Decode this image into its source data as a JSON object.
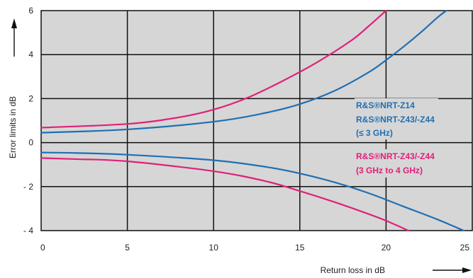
{
  "chart_data": {
    "type": "line",
    "xlabel": "Return loss in dB",
    "ylabel": "Error limits in dB",
    "xlim": [
      0,
      25
    ],
    "ylim": [
      -4,
      6
    ],
    "x_ticks": [
      "0",
      "5",
      "10",
      "15",
      "20",
      "25"
    ],
    "y_ticks": [
      "6",
      "4",
      "2",
      "0",
      "- 2",
      "- 4"
    ],
    "grid": true,
    "colors": {
      "blue": "#1f6fb4",
      "magenta": "#e0207a",
      "plot_bg": "#d6d6d6",
      "grid": "#111111"
    },
    "legend": [
      {
        "lines": [
          "R&S®NRT-Z14",
          "R&S®NRT-Z43/-Z44",
          "(≤ 3 GHz)"
        ],
        "color": "#1f6fb4"
      },
      {
        "lines": [
          "R&S®NRT-Z43/-Z44",
          "(3 GHz to 4 GHz)"
        ],
        "color": "#e0207a"
      }
    ],
    "series": [
      {
        "color": "#1f6fb4",
        "x": [
          0,
          5,
          10,
          13,
          15,
          17,
          19,
          20,
          21,
          22,
          23,
          23.5
        ],
        "y": [
          0.45,
          0.6,
          0.95,
          1.35,
          1.75,
          2.35,
          3.2,
          3.75,
          4.35,
          5.0,
          5.7,
          6.0
        ]
      },
      {
        "color": "#1f6fb4",
        "x": [
          0,
          2,
          5,
          10,
          13,
          15,
          17,
          19,
          21,
          23,
          24.5
        ],
        "y": [
          -0.45,
          -0.47,
          -0.55,
          -0.8,
          -1.1,
          -1.4,
          -1.8,
          -2.3,
          -2.9,
          -3.5,
          -4.0
        ]
      },
      {
        "color": "#e0207a",
        "x": [
          0,
          5,
          8,
          10,
          12,
          14,
          16,
          18,
          19,
          20
        ],
        "y": [
          0.68,
          0.85,
          1.15,
          1.5,
          2.05,
          2.8,
          3.65,
          4.65,
          5.3,
          6.0
        ]
      },
      {
        "color": "#e0207a",
        "x": [
          0,
          2,
          5,
          10,
          13,
          15,
          17,
          19,
          20,
          21.3
        ],
        "y": [
          -0.7,
          -0.75,
          -0.85,
          -1.3,
          -1.75,
          -2.2,
          -2.7,
          -3.25,
          -3.55,
          -4.0
        ]
      }
    ]
  }
}
